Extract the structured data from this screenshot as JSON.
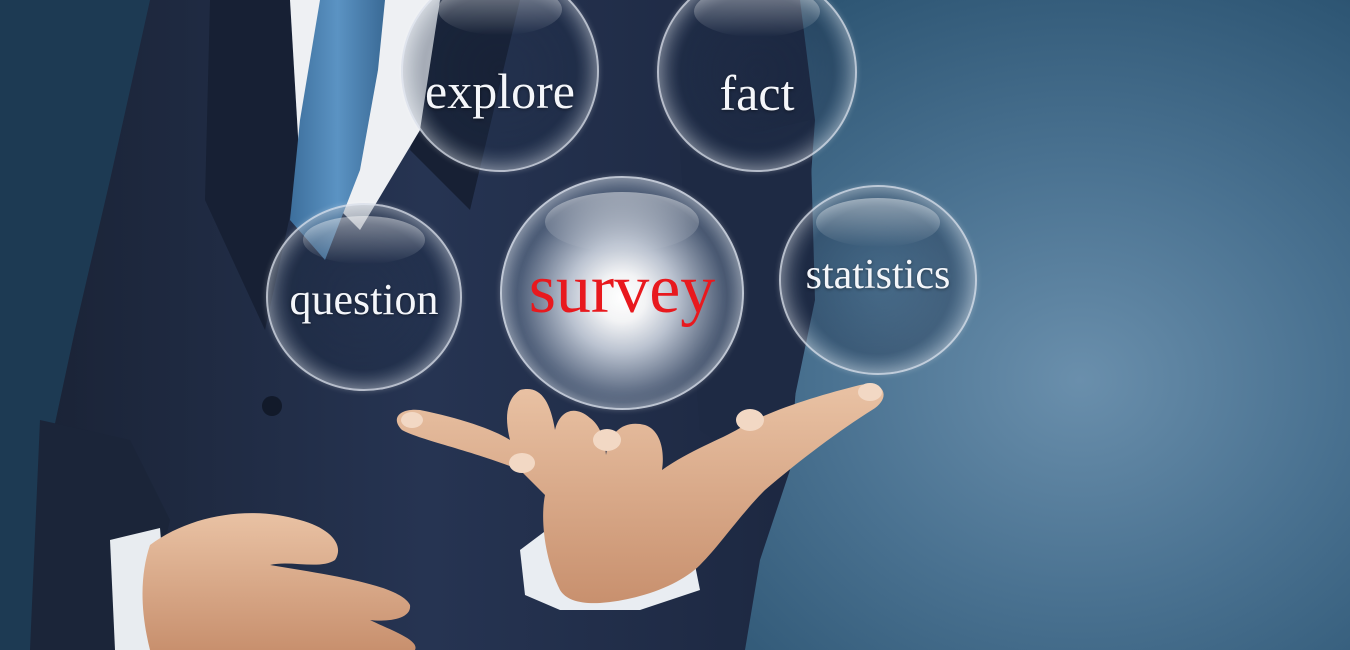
{
  "scene": {
    "description_colors": {
      "background": "#2e5674",
      "suit": "#1f2a42",
      "tie": "#4f86b6",
      "skin": "#e3b594",
      "survey_text": "#e8191e",
      "bubble_text": "#f4f6fa"
    }
  },
  "bubbles": {
    "explore": "explore",
    "fact": "fact",
    "question": "question",
    "survey": "survey",
    "statistics": "statistics"
  }
}
